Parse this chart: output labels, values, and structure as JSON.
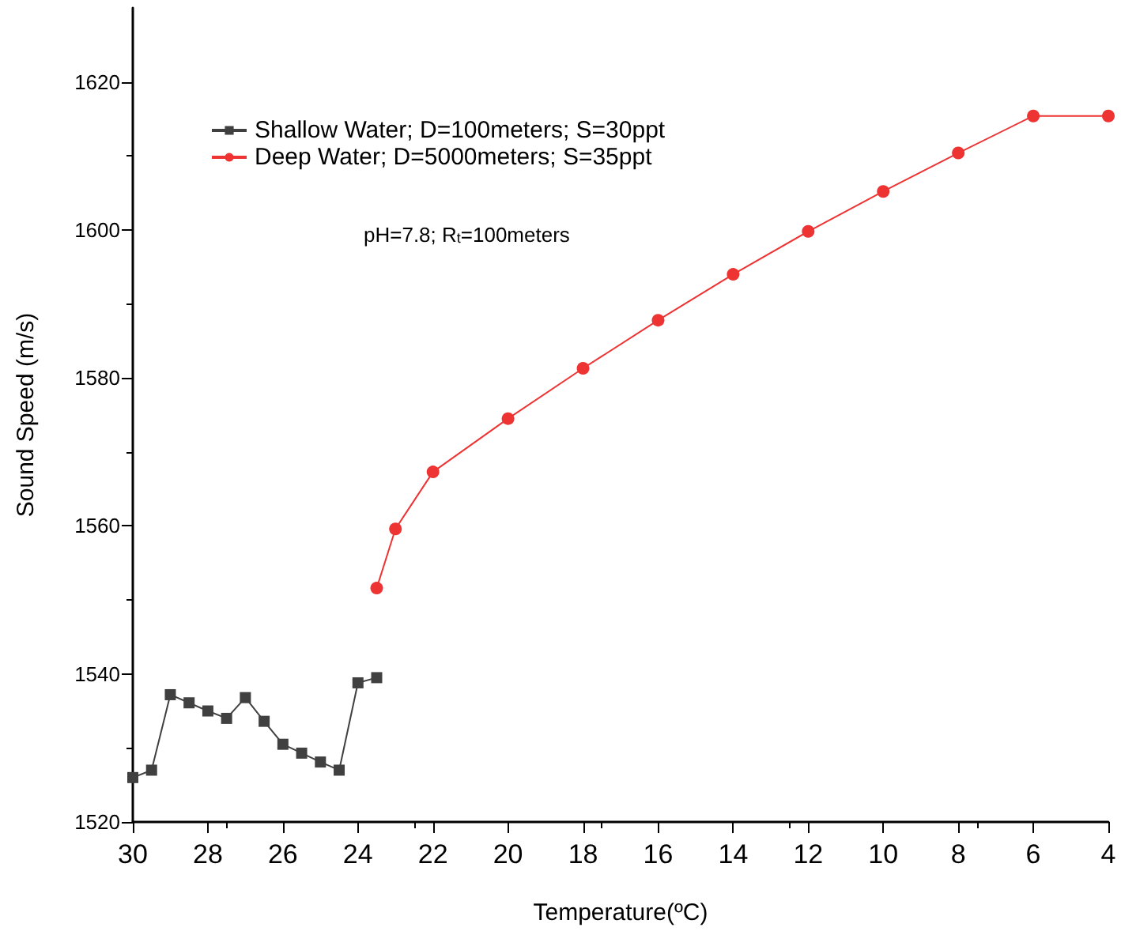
{
  "chart_data": {
    "type": "line",
    "xlabel": "Temperature(ºC)",
    "ylabel": "Sound Speed (m/s)",
    "xlim": [
      30,
      4
    ],
    "xticks": [
      30,
      28,
      26,
      24,
      22,
      20,
      18,
      16,
      14,
      12,
      10,
      8,
      6,
      4
    ],
    "ylim": [
      1520,
      1630
    ],
    "yticks": [
      1520,
      1540,
      1560,
      1580,
      1600,
      1620
    ],
    "grid": false,
    "legend": "top left",
    "annotations": [
      "pH=7.8; R$_{t}$=100meters"
    ],
    "series": [
      {
        "name": "Shallow Water; D=100meters; S=30ppt",
        "color": "#404040",
        "marker": "square",
        "x": [
          30,
          29.5,
          29,
          28.5,
          28,
          27.5,
          27,
          26.5,
          26,
          25.5,
          25,
          24.5,
          24,
          23.5
        ],
        "values": [
          1526,
          1527,
          1537.2,
          1536.1,
          1535,
          1534,
          1536.8,
          1533.6,
          1530.5,
          1529.3,
          1528.1,
          1527,
          1538.8,
          1539.5
        ]
      },
      {
        "name": "Deep Water; D=5000meters; S=35ppt",
        "color": "#ee3333",
        "marker": "circle",
        "x": [
          23.5,
          23,
          22,
          20,
          18,
          16,
          14,
          12,
          10,
          8,
          6,
          4
        ],
        "values": [
          1551.6,
          1559.6,
          1567.3,
          1574.5,
          1581.3,
          1587.8,
          1594,
          1599.8,
          1605.2,
          1610.4,
          1615.4,
          1615.4
        ]
      }
    ]
  }
}
